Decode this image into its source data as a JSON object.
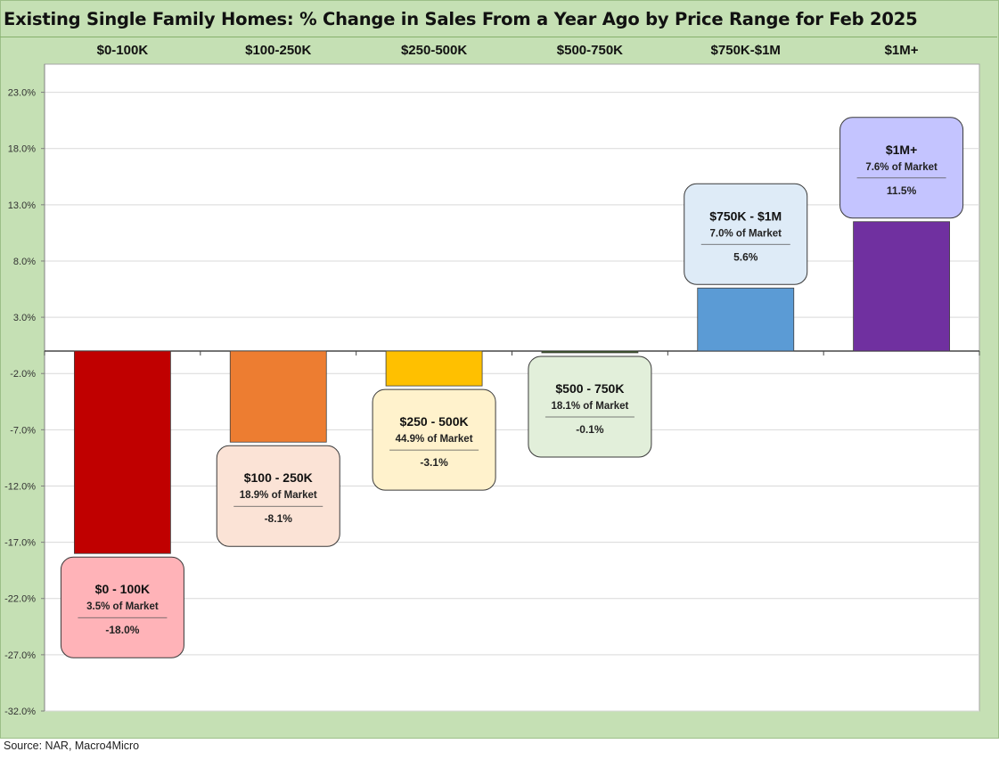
{
  "title": "Existing Single Family Homes: % Change in Sales From a Year Ago by Price Range for Feb 2025",
  "source": "Source: NAR, Macro4Micro",
  "chart_data": {
    "type": "bar",
    "title": "Existing Single Family Homes: % Change in Sales From a Year Ago by Price Range for Feb 2025",
    "categories": [
      "$0-100K",
      "$100-250K",
      "$250-500K",
      "$500-750K",
      "$750K-$1M",
      "$1M+"
    ],
    "values": [
      -18.0,
      -8.1,
      -3.1,
      -0.1,
      5.6,
      11.5
    ],
    "value_labels": [
      "-18.0%",
      "-8.1%",
      "-3.1%",
      "-0.1%",
      "5.6%",
      "11.5%"
    ],
    "bar_colors": [
      "#c00000",
      "#ed7d31",
      "#ffc000",
      "#375623",
      "#5b9bd5",
      "#7030a0"
    ],
    "annotations": [
      {
        "title": "$0 - 100K",
        "share": "3.5% of Market",
        "value": "-18.0%",
        "fill": "#ffb3b8"
      },
      {
        "title": "$100 - 250K",
        "share": "18.9% of Market",
        "value": "-8.1%",
        "fill": "#fbe3d6"
      },
      {
        "title": "$250 - 500K",
        "share": "44.9% of Market",
        "value": "-3.1%",
        "fill": "#fff2cc"
      },
      {
        "title": "$500 - 750K",
        "share": "18.1% of Market",
        "value": "-0.1%",
        "fill": "#e2efda"
      },
      {
        "title": "$750K - $1M",
        "share": "7.0% of Market",
        "value": "5.6%",
        "fill": "#deebf7"
      },
      {
        "title": "$1M+",
        "share": "7.6% of Market",
        "value": "11.5%",
        "fill": "#c4c4ff"
      }
    ],
    "ylim": [
      -32,
      25.5
    ],
    "yticks": [
      23.0,
      18.0,
      13.0,
      8.0,
      3.0,
      -2.0,
      -7.0,
      -12.0,
      -17.0,
      -22.0,
      -27.0,
      -32.0
    ],
    "ytick_labels": [
      "23.0%",
      "18.0%",
      "13.0%",
      "8.0%",
      "3.0%",
      "-2.0%",
      "-7.0%",
      "-12.0%",
      "-17.0%",
      "-22.0%",
      "-27.0%",
      "-32.0%"
    ],
    "grid": true,
    "xlabel": "",
    "ylabel": ""
  }
}
